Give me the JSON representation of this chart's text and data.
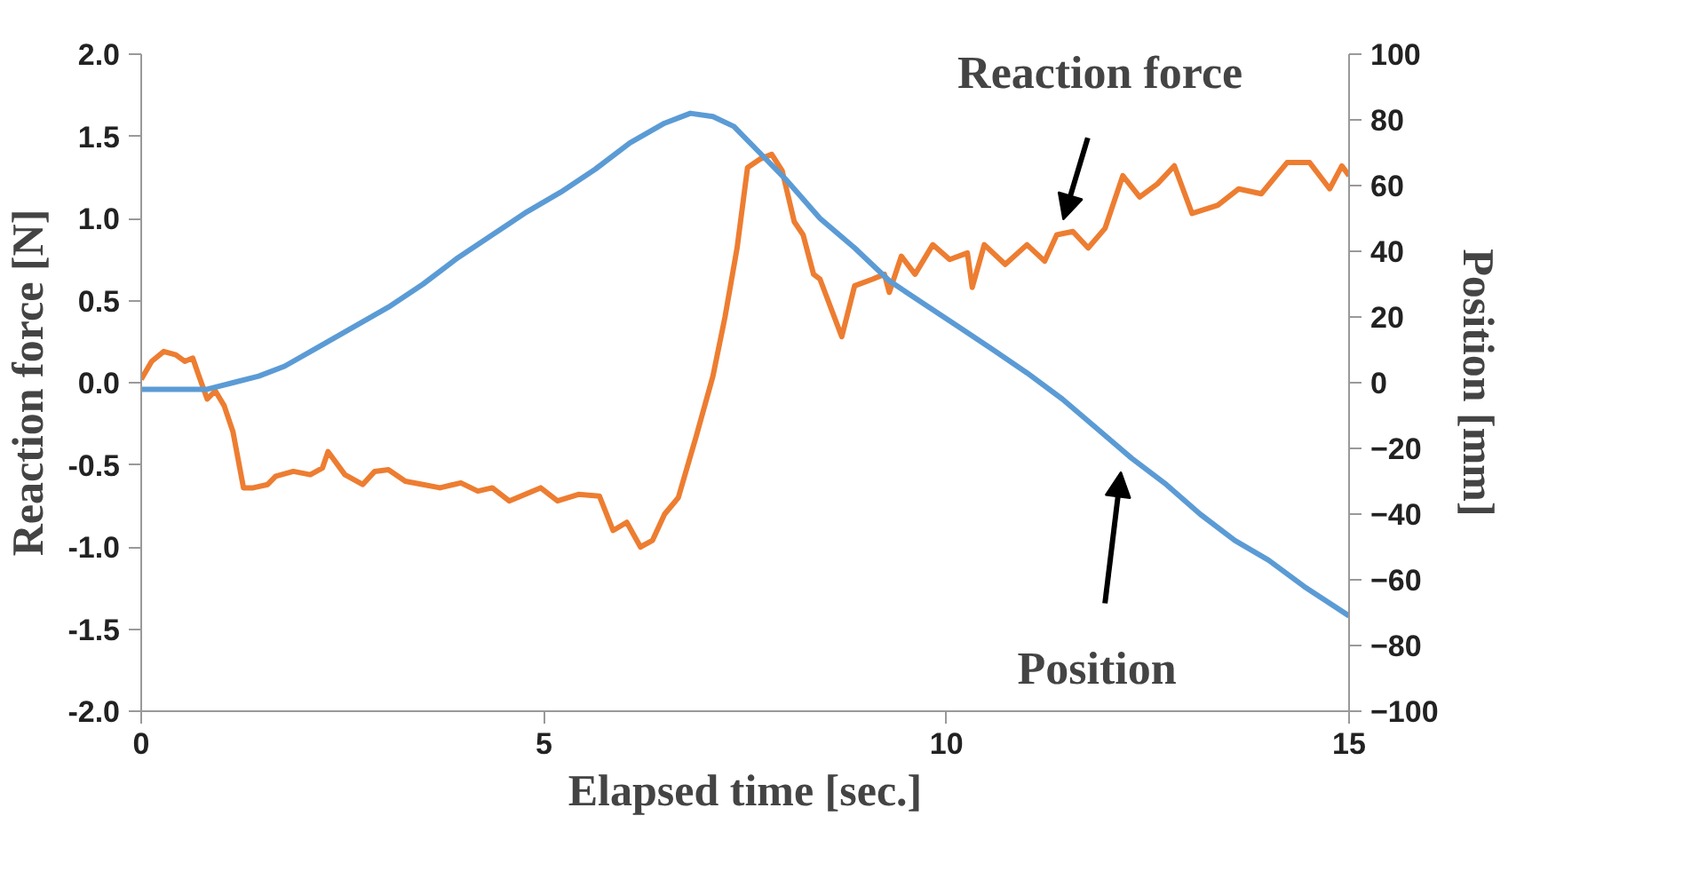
{
  "chart_data": {
    "type": "line",
    "xlabel": "Elapsed time [sec.]",
    "ylabel": "Reaction force [N]",
    "y2label": "Position [mm]",
    "xlim": [
      0,
      15
    ],
    "xticks": [
      0,
      5,
      10,
      15
    ],
    "ylim": [
      -2,
      2
    ],
    "yticks": [
      {
        "value": -2,
        "label": "-2.0"
      },
      {
        "value": -1.5,
        "label": "-1.5"
      },
      {
        "value": -1,
        "label": "-1.0"
      },
      {
        "value": -0.5,
        "label": "-0.5"
      },
      {
        "value": 0,
        "label": "0.0"
      },
      {
        "value": 0.5,
        "label": "0.5"
      },
      {
        "value": 1,
        "label": "1.0"
      },
      {
        "value": 1.5,
        "label": "1.5"
      },
      {
        "value": 2,
        "label": "2.0"
      }
    ],
    "y2lim": [
      -100,
      100
    ],
    "y2ticks": [
      -100,
      -80,
      -60,
      -40,
      -20,
      0,
      20,
      40,
      60,
      80,
      100
    ],
    "grid": false,
    "line_style": "solid",
    "series": [
      {
        "color": "#ed7d31",
        "x": [
          0,
          0.13,
          0.28,
          0.43,
          0.54,
          0.64,
          0.71,
          0.82,
          0.92,
          1.03,
          1.14,
          1.27,
          1.39,
          1.57,
          1.67,
          1.89,
          2.1,
          2.25,
          2.32,
          2.53,
          2.75,
          2.9,
          3.07,
          3.28,
          3.5,
          3.71,
          3.97,
          4.18,
          4.36,
          4.57,
          4.96,
          5.17,
          5.43,
          5.69,
          5.86,
          6.03,
          6.2,
          6.35,
          6.5,
          6.67,
          6.89,
          7.1,
          7.25,
          7.4,
          7.53,
          7.68,
          7.83,
          7.96,
          8.11,
          8.22,
          8.35,
          8.43,
          8.7,
          8.86,
          9.08,
          9.23,
          9.29,
          9.44,
          9.61,
          9.83,
          10.04,
          10.26,
          10.32,
          10.47,
          10.73,
          11.0,
          11.22,
          11.37,
          11.57,
          11.76,
          11.97,
          12.19,
          12.4,
          12.62,
          12.83,
          13.05,
          13.37,
          13.63,
          13.91,
          14.23,
          14.51,
          14.76,
          14.91,
          15
        ],
        "values": [
          0.02,
          0.13,
          0.19,
          0.17,
          0.13,
          0.15,
          0.05,
          -0.1,
          -0.05,
          -0.14,
          -0.3,
          -0.64,
          -0.64,
          -0.62,
          -0.57,
          -0.54,
          -0.56,
          -0.52,
          -0.42,
          -0.56,
          -0.62,
          -0.54,
          -0.53,
          -0.6,
          -0.62,
          -0.64,
          -0.61,
          -0.66,
          -0.64,
          -0.72,
          -0.64,
          -0.72,
          -0.68,
          -0.69,
          -0.9,
          -0.85,
          -1.0,
          -0.96,
          -0.8,
          -0.7,
          -0.33,
          0.04,
          0.4,
          0.82,
          1.31,
          1.36,
          1.39,
          1.29,
          0.98,
          0.9,
          0.66,
          0.63,
          0.28,
          0.59,
          0.63,
          0.66,
          0.55,
          0.77,
          0.66,
          0.84,
          0.75,
          0.79,
          0.58,
          0.84,
          0.72,
          0.84,
          0.74,
          0.9,
          0.92,
          0.82,
          0.94,
          1.26,
          1.13,
          1.21,
          1.32,
          1.03,
          1.08,
          1.18,
          1.15,
          1.34,
          1.34,
          1.18,
          1.32,
          1.26
        ]
      },
      {
        "color": "#5b9bd5",
        "axis": "y2",
        "x": [
          0,
          0.3,
          0.82,
          1.14,
          1.46,
          1.78,
          2.21,
          2.64,
          3.07,
          3.5,
          3.93,
          4.36,
          4.79,
          5.21,
          5.64,
          6.07,
          6.5,
          6.82,
          7.1,
          7.36,
          7.68,
          8.0,
          8.43,
          8.86,
          9.29,
          9.72,
          10.15,
          10.58,
          11.0,
          11.44,
          11.87,
          12.3,
          12.73,
          13.15,
          13.58,
          14.0,
          14.44,
          15
        ],
        "values": [
          -2,
          -2,
          -2,
          0,
          2,
          5,
          11,
          17,
          23,
          30,
          38,
          45,
          52,
          58,
          65,
          73,
          79,
          82,
          81,
          78,
          70,
          62,
          50,
          41,
          31,
          24,
          17,
          10,
          3,
          -5,
          -14,
          -23,
          -31,
          -40,
          -48,
          -54,
          -62,
          -71
        ]
      }
    ],
    "annotations": [
      {
        "text": "Reaction force",
        "x": 11.4,
        "y": 0.95
      },
      {
        "text": "Position",
        "x": 12.2,
        "y": -0.5
      }
    ]
  }
}
